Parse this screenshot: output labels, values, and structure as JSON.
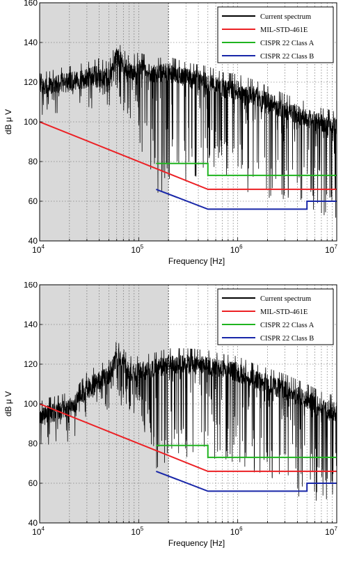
{
  "chart_data": [
    {
      "type": "line",
      "xlabel": "Frequency [Hz]",
      "ylabel": "dB μ V",
      "x_scale": "log",
      "xlim": [
        10000,
        10000000
      ],
      "ylim": [
        40,
        160
      ],
      "y_ticks": [
        "40",
        "60",
        "80",
        "100",
        "120",
        "140",
        "160"
      ],
      "x_ticks": [
        {
          "base": "10",
          "exp": "4",
          "value": 10000
        },
        {
          "base": "10",
          "exp": "5",
          "value": 100000
        },
        {
          "base": "10",
          "exp": "6",
          "value": 1000000
        },
        {
          "base": "10",
          "exp": "7",
          "value": 10000000
        }
      ],
      "grid": true,
      "shaded_region": {
        "x_from": 10000,
        "x_to": 200000,
        "color": "#d9d9d9"
      },
      "legend_position": "top-right",
      "series": [
        {
          "name": "Current spectrum",
          "color": "#000000",
          "envelope": {
            "x": [
              10000,
              12000,
              15000,
              20000,
              30000,
              40000,
              50000,
              60000,
              80000,
              100000,
              150000,
              200000,
              300000,
              500000,
              700000,
              1000000,
              1500000,
              2000000,
              3000000,
              5000000,
              7000000,
              10000000
            ],
            "upper": [
              128,
              125,
              127,
              128,
              130,
              132,
              130,
              141,
              133,
              135,
              132,
              133,
              130,
              128,
              125,
              124,
              121,
              118,
              114,
              110,
              107,
              105
            ],
            "lower": [
              118,
              115,
              117,
              118,
              117,
              114,
              107,
              110,
              100,
              90,
              58,
              68,
              70,
              74,
              72,
              68,
              62,
              58,
              56,
              52,
              52,
              50
            ]
          }
        },
        {
          "name": "MIL-STD-461E",
          "color": "#ec2024",
          "x": [
            10000,
            500000,
            10000000
          ],
          "y": [
            100,
            66,
            66
          ]
        },
        {
          "name": "CISPR 22 Class A",
          "color": "#1fb41f",
          "x": [
            150000,
            500000,
            500000,
            10000000
          ],
          "y": [
            79,
            79,
            73,
            73
          ]
        },
        {
          "name": "CISPR 22 Class B",
          "color": "#1826a8",
          "x": [
            150000,
            500000,
            5000000,
            5000000,
            10000000
          ],
          "y": [
            66,
            56,
            56,
            60,
            60
          ]
        }
      ]
    },
    {
      "type": "line",
      "xlabel": "Frequency [Hz]",
      "ylabel": "dB μ V",
      "x_scale": "log",
      "xlim": [
        10000,
        10000000
      ],
      "ylim": [
        40,
        160
      ],
      "y_ticks": [
        "40",
        "60",
        "80",
        "100",
        "120",
        "140",
        "160"
      ],
      "x_ticks": [
        {
          "base": "10",
          "exp": "4",
          "value": 10000
        },
        {
          "base": "10",
          "exp": "5",
          "value": 100000
        },
        {
          "base": "10",
          "exp": "6",
          "value": 1000000
        },
        {
          "base": "10",
          "exp": "7",
          "value": 10000000
        }
      ],
      "grid": true,
      "shaded_region": {
        "x_from": 10000,
        "x_to": 200000,
        "color": "#d9d9d9"
      },
      "legend_position": "top-right",
      "series": [
        {
          "name": "Current spectrum",
          "color": "#000000",
          "envelope": {
            "x": [
              10000,
              12000,
              15000,
              20000,
              25000,
              30000,
              40000,
              50000,
              60000,
              80000,
              100000,
              150000,
              200000,
              300000,
              500000,
              700000,
              1000000,
              1500000,
              2000000,
              3000000,
              5000000,
              7000000,
              10000000
            ],
            "upper": [
              101,
              103,
              104,
              106,
              110,
              116,
              120,
              122,
              132,
              124,
              124,
              126,
              128,
              128,
              127,
              125,
              124,
              120,
              118,
              115,
              110,
              106,
              104
            ],
            "lower": [
              98,
              97,
              96,
              98,
              102,
              100,
              100,
              98,
              100,
              95,
              94,
              66,
              70,
              72,
              74,
              70,
              68,
              62,
              58,
              55,
              52,
              50,
              50
            ]
          }
        },
        {
          "name": "MIL-STD-461E",
          "color": "#ec2024",
          "x": [
            10000,
            500000,
            10000000
          ],
          "y": [
            100,
            66,
            66
          ]
        },
        {
          "name": "CISPR 22 Class A",
          "color": "#1fb41f",
          "x": [
            150000,
            500000,
            500000,
            10000000
          ],
          "y": [
            79,
            79,
            73,
            73
          ]
        },
        {
          "name": "CISPR 22 Class B",
          "color": "#1826a8",
          "x": [
            150000,
            500000,
            5000000,
            5000000,
            10000000
          ],
          "y": [
            66,
            56,
            56,
            60,
            60
          ]
        }
      ]
    }
  ]
}
